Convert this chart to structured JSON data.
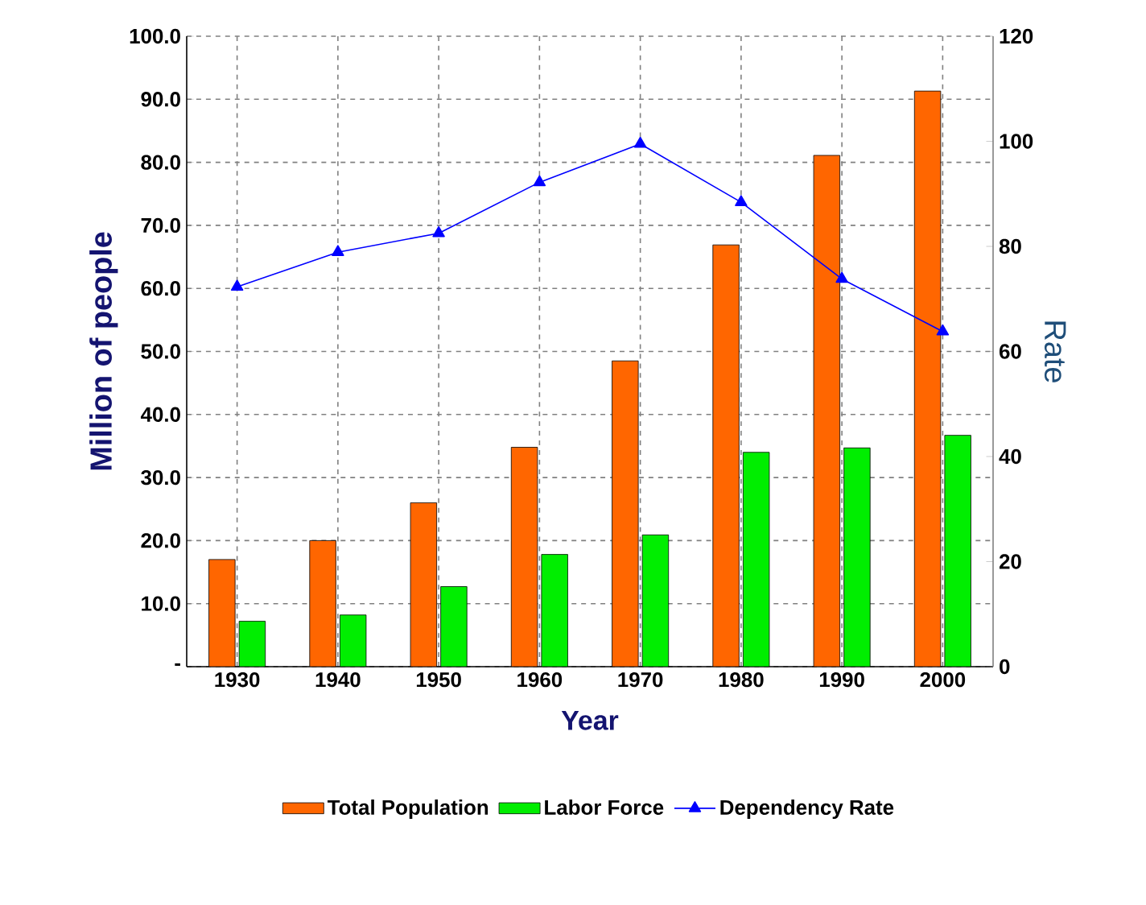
{
  "chart_data": {
    "type": "bar",
    "xlabel": "Year",
    "ylabel": "Million of people",
    "y2label": "Rate",
    "categories": [
      "1930",
      "1940",
      "1950",
      "1960",
      "1970",
      "1980",
      "1990",
      "2000"
    ],
    "series": [
      {
        "name": "Total Population",
        "color": "#ff6600",
        "values": [
          17.0,
          20.0,
          26.0,
          34.8,
          48.5,
          66.9,
          81.1,
          91.3
        ]
      },
      {
        "name": "Labor Force",
        "color": "#00ee00",
        "values": [
          7.2,
          8.2,
          12.7,
          17.8,
          20.9,
          34.0,
          34.7,
          36.7
        ]
      },
      {
        "name": "Dependency Rate",
        "type": "line",
        "axis": "y2",
        "marker": "triangle",
        "color": "#0000ff",
        "values": [
          72.3,
          78.9,
          82.5,
          92.2,
          99.5,
          88.4,
          73.8,
          63.8
        ]
      }
    ],
    "ylim": [
      0,
      100
    ],
    "yticks": [
      {
        "value": 0,
        "label": "-"
      },
      {
        "value": 10,
        "label": "10.0"
      },
      {
        "value": 20,
        "label": "20.0"
      },
      {
        "value": 30,
        "label": "30.0"
      },
      {
        "value": 40,
        "label": "40.0"
      },
      {
        "value": 50,
        "label": "50.0"
      },
      {
        "value": 60,
        "label": "60.0"
      },
      {
        "value": 70,
        "label": "70.0"
      },
      {
        "value": 80,
        "label": "80.0"
      },
      {
        "value": 90,
        "label": "90.0"
      },
      {
        "value": 100,
        "label": "100.0"
      }
    ],
    "y2lim": [
      0,
      120
    ],
    "y2ticks": [
      0,
      20,
      40,
      60,
      80,
      100,
      120
    ],
    "grid": true,
    "legend": "bottom",
    "line_style": "solid"
  }
}
